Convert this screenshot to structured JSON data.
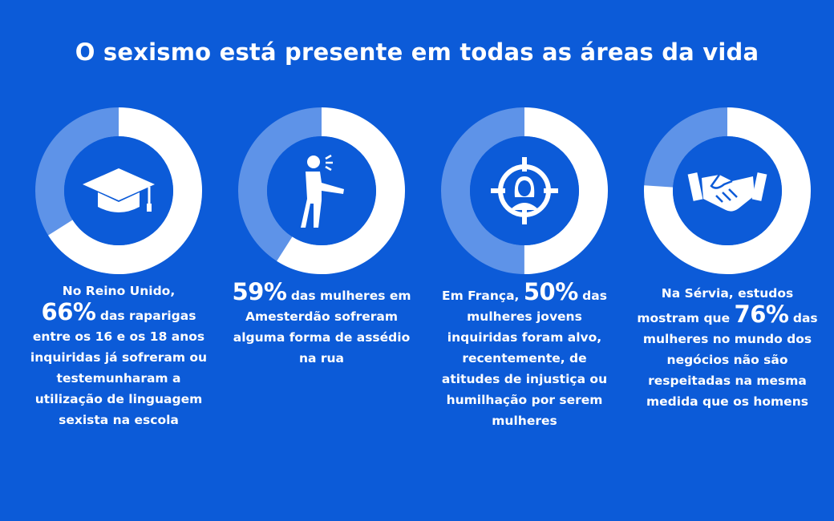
{
  "title": "O sexismo está presente em todas as áreas da vida",
  "colors": {
    "background": "#0c5bd8",
    "ring_highlight": "#ffffff",
    "ring_rest": "#5e93e8",
    "center": "#0c5bd8"
  },
  "chart_data": [
    {
      "type": "pie",
      "icon": "graduation-cap-icon",
      "value": 66,
      "caption": {
        "before": "No Reino Unido,",
        "stat": "66%",
        "after": "das raparigas entre os 16 e os 18 anos inquiridas já sofreram ou testemunharam a utilização de linguagem sexista na escola"
      }
    },
    {
      "type": "pie",
      "icon": "shouting-person-icon",
      "value": 59,
      "caption": {
        "before": "",
        "stat": "59%",
        "after": "das mulheres em Amesterdão sofreram alguma forma de assédio na rua"
      }
    },
    {
      "type": "pie",
      "icon": "targeted-woman-icon",
      "value": 50,
      "caption": {
        "before": "Em França,",
        "stat": "50%",
        "after": "das mulheres jovens inquiridas foram alvo, recentemente, de atitudes de injustiça ou humilhação por serem mulheres"
      }
    },
    {
      "type": "pie",
      "icon": "handshake-icon",
      "value": 76,
      "caption": {
        "before": "Na Sérvia, estudos mostram que",
        "stat": "76%",
        "after": "das mulheres no mundo dos negócios não são respeitadas na mesma medida que os homens"
      }
    }
  ]
}
